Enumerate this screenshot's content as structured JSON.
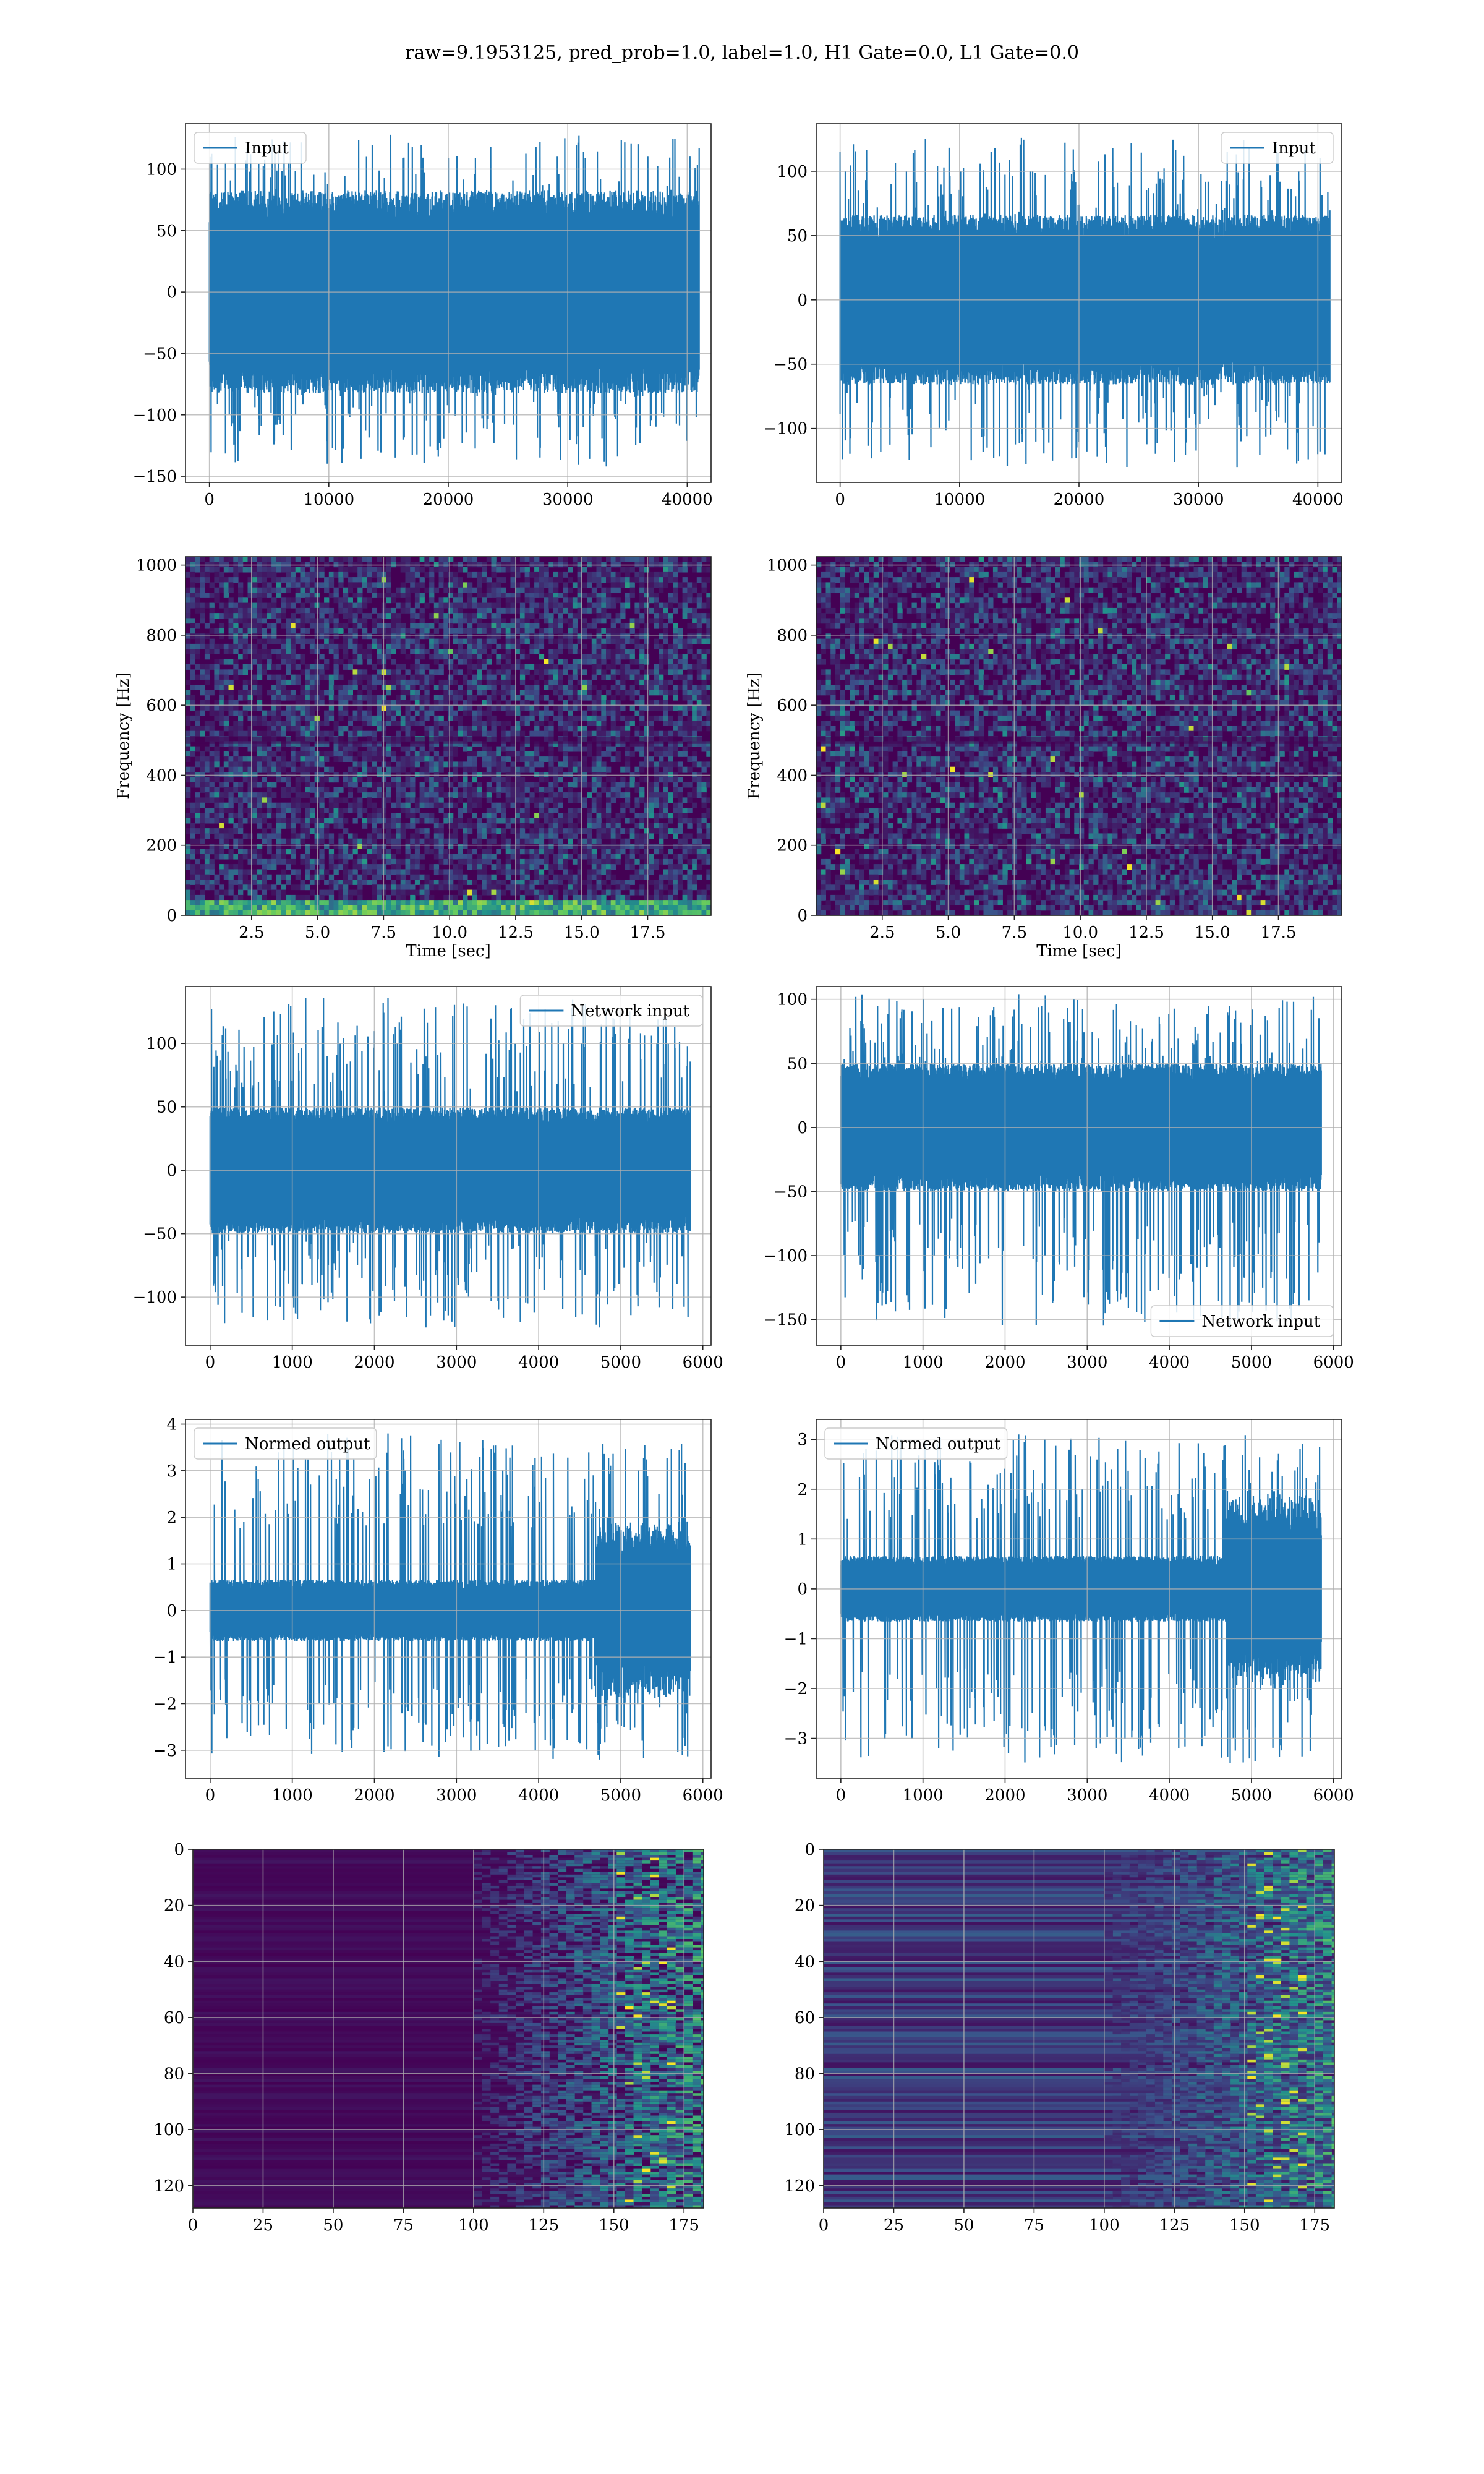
{
  "figure": {
    "title": "raw=9.1953125, pred_prob=1.0, label=1.0, H1 Gate=0.0, L1 Gate=0.0"
  },
  "colors": {
    "signal": "#1f77b4",
    "grid": "#b0b0b0",
    "viridis_low": "#440154",
    "viridis_mid": "#21908d",
    "viridis_high": "#fde725"
  },
  "chart_data": [
    {
      "id": "input-h1",
      "type": "line",
      "row": 0,
      "col": 0,
      "legend": {
        "label": "Input",
        "loc": "upper-left"
      },
      "xlim": [
        -2000,
        42000
      ],
      "ylim": [
        -155,
        137
      ],
      "xticks": [
        0,
        10000,
        20000,
        30000,
        40000
      ],
      "yticks": [
        -150,
        -100,
        -50,
        0,
        50,
        100
      ],
      "signal": {
        "n": 41000,
        "envelope_lo": -75,
        "envelope_hi": 75,
        "spike_min": -142,
        "spike_max": 128
      }
    },
    {
      "id": "input-l1",
      "type": "line",
      "row": 0,
      "col": 1,
      "legend": {
        "label": "Input",
        "loc": "upper-right"
      },
      "xlim": [
        -2000,
        42000
      ],
      "ylim": [
        -142,
        137
      ],
      "xticks": [
        0,
        10000,
        20000,
        30000,
        40000
      ],
      "yticks": [
        -100,
        -50,
        0,
        50,
        100
      ],
      "signal": {
        "n": 41000,
        "envelope_lo": -60,
        "envelope_hi": 60,
        "spike_min": -130,
        "spike_max": 126
      }
    },
    {
      "id": "spectrogram-h1",
      "type": "heatmap",
      "row": 1,
      "col": 0,
      "xlabel": "Time [sec]",
      "ylabel": "Frequency [Hz]",
      "xlim": [
        0,
        19.9
      ],
      "ylim": [
        0,
        1024
      ],
      "xticks": [
        2.5,
        5.0,
        7.5,
        10.0,
        12.5,
        15.0,
        17.5
      ],
      "xtick_labels": [
        "2.5",
        "5.0",
        "7.5",
        "10.0",
        "12.5",
        "15.0",
        "17.5"
      ],
      "yticks": [
        0,
        200,
        400,
        600,
        800,
        1000
      ],
      "low_freq_band": true
    },
    {
      "id": "spectrogram-l1",
      "type": "heatmap",
      "row": 1,
      "col": 1,
      "xlabel": "Time [sec]",
      "ylabel": "Frequency [Hz]",
      "xlim": [
        0,
        19.9
      ],
      "ylim": [
        0,
        1024
      ],
      "xticks": [
        2.5,
        5.0,
        7.5,
        10.0,
        12.5,
        15.0,
        17.5
      ],
      "xtick_labels": [
        "2.5",
        "5.0",
        "7.5",
        "10.0",
        "12.5",
        "15.0",
        "17.5"
      ],
      "yticks": [
        0,
        200,
        400,
        600,
        800,
        1000
      ],
      "low_freq_band": false
    },
    {
      "id": "network-input-h1",
      "type": "line",
      "row": 2,
      "col": 0,
      "legend": {
        "label": "Network input",
        "loc": "upper-right"
      },
      "xlim": [
        -300,
        6100
      ],
      "ylim": [
        -138,
        145
      ],
      "xticks": [
        0,
        1000,
        2000,
        3000,
        4000,
        5000,
        6000
      ],
      "yticks": [
        -100,
        -50,
        0,
        50,
        100
      ],
      "signal": {
        "n": 5850,
        "envelope_lo": -45,
        "envelope_hi": 45,
        "spike_min": -124,
        "spike_max": 136
      }
    },
    {
      "id": "network-input-l1",
      "type": "line",
      "row": 2,
      "col": 1,
      "legend": {
        "label": "Network input",
        "loc": "lower-right"
      },
      "xlim": [
        -300,
        6100
      ],
      "ylim": [
        -170,
        110
      ],
      "xticks": [
        0,
        1000,
        2000,
        3000,
        4000,
        5000,
        6000
      ],
      "yticks": [
        -150,
        -100,
        -50,
        0,
        50,
        100
      ],
      "signal": {
        "n": 5850,
        "envelope_lo": -45,
        "envelope_hi": 45,
        "spike_min": -157,
        "spike_max": 104
      }
    },
    {
      "id": "normed-output-h1",
      "type": "line",
      "row": 3,
      "col": 0,
      "legend": {
        "label": "Normed output",
        "loc": "upper-left"
      },
      "xlim": [
        -300,
        6100
      ],
      "ylim": [
        -3.6,
        4.1
      ],
      "xticks": [
        0,
        1000,
        2000,
        3000,
        4000,
        5000,
        6000
      ],
      "yticks": [
        -3,
        -2,
        -1,
        0,
        1,
        2,
        3,
        4
      ],
      "signal": {
        "n": 5850,
        "envelope_lo": -0.6,
        "envelope_hi": 0.6,
        "spike_min": -3.2,
        "spike_max": 3.8,
        "burst_start": 4700
      }
    },
    {
      "id": "normed-output-l1",
      "type": "line",
      "row": 3,
      "col": 1,
      "legend": {
        "label": "Normed output",
        "loc": "upper-left"
      },
      "xlim": [
        -300,
        6100
      ],
      "ylim": [
        -3.8,
        3.4
      ],
      "xticks": [
        0,
        1000,
        2000,
        3000,
        4000,
        5000,
        6000
      ],
      "yticks": [
        -3,
        -2,
        -1,
        0,
        1,
        2,
        3
      ],
      "signal": {
        "n": 5850,
        "envelope_lo": -0.6,
        "envelope_hi": 0.6,
        "spike_min": -3.5,
        "spike_max": 3.1,
        "burst_start": 4700
      }
    },
    {
      "id": "feature-map-h1",
      "type": "heatmap",
      "row": 4,
      "col": 0,
      "xlim": [
        0,
        182
      ],
      "ylim": [
        128,
        0
      ],
      "xticks": [
        0,
        25,
        50,
        75,
        100,
        125,
        150,
        175
      ],
      "yticks": [
        0,
        20,
        40,
        60,
        80,
        100,
        120
      ],
      "active_from_col": 100
    },
    {
      "id": "feature-map-l1",
      "type": "heatmap",
      "row": 4,
      "col": 1,
      "xlim": [
        0,
        182
      ],
      "ylim": [
        128,
        0
      ],
      "xticks": [
        0,
        25,
        50,
        75,
        100,
        125,
        150,
        175
      ],
      "yticks": [
        0,
        20,
        40,
        60,
        80,
        100,
        120
      ],
      "active_from_col": 0
    }
  ]
}
